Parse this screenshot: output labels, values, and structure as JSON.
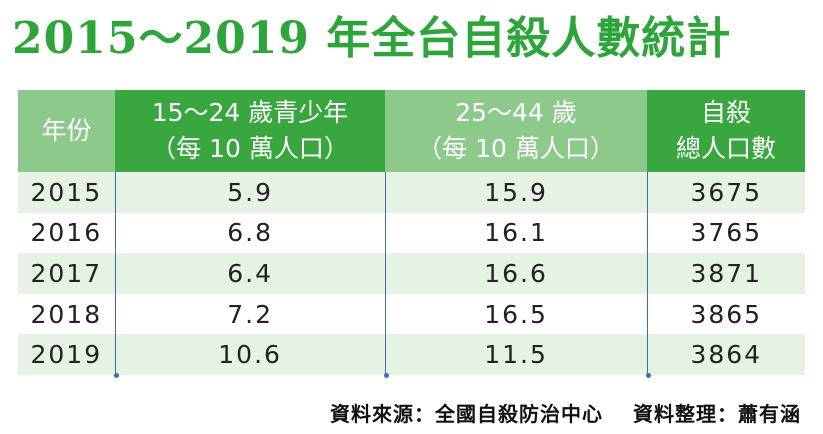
{
  "title": "2015～2019 年全台自殺人數統計",
  "headers": {
    "year": "年份",
    "youth_line1": "15～24 歲青少年",
    "youth_line2": "（每 10 萬人口）",
    "adult_line1": "25～44 歲",
    "adult_line2": "（每 10 萬人口）",
    "total_line1": "自殺",
    "total_line2": "總人口數"
  },
  "rows": [
    {
      "year": "2015",
      "youth": "5.9",
      "adult": "15.9",
      "total": "3675"
    },
    {
      "year": "2016",
      "youth": "6.8",
      "adult": "16.1",
      "total": "3765"
    },
    {
      "year": "2017",
      "youth": "6.4",
      "adult": "16.6",
      "total": "3871"
    },
    {
      "year": "2018",
      "youth": "7.2",
      "adult": "16.5",
      "total": "3865"
    },
    {
      "year": "2019",
      "youth": "10.6",
      "adult": "11.5",
      "total": "3864"
    }
  ],
  "footer": {
    "source": "資料來源：全國自殺防治中心",
    "compiler": "資料整理：蕭有涵"
  },
  "colors": {
    "title_green": "#2ea53a",
    "header_dark_green": "#3aa63f",
    "header_light_green": "#8cc98a",
    "row_stripe": "#e6f2e3",
    "divider_blue": "#3a6fb0"
  }
}
